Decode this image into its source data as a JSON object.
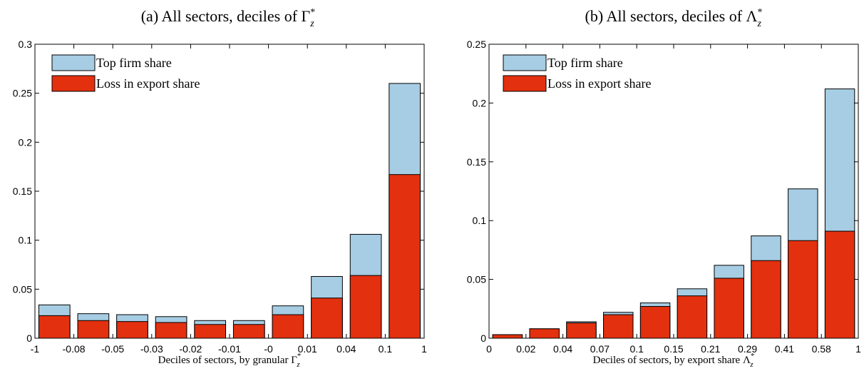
{
  "chart_data": [
    {
      "type": "bar",
      "title": "(a) All sectors, deciles of Γ",
      "title_sup": "*",
      "title_sub": "z",
      "xlabel": "Deciles of sectors, by granular Γ",
      "xlabel_sup": "*",
      "xlabel_sub": "z",
      "ylim": [
        0,
        0.3
      ],
      "yticks": [
        "0",
        "0.05",
        "0.1",
        "0.15",
        "0.2",
        "0.25",
        "0.3"
      ],
      "xticks": [
        "-1",
        "-0.08",
        "-0.05",
        "-0.03",
        "-0.02",
        "-0.01",
        "-0",
        "0.01",
        "0.04",
        "0.1",
        "1"
      ],
      "legend_position": "top-left",
      "series": [
        {
          "name": "Top firm share",
          "color": "#a6cde3",
          "values": [
            0.034,
            0.025,
            0.024,
            0.022,
            0.018,
            0.018,
            0.033,
            0.063,
            0.106,
            0.26
          ]
        },
        {
          "name": "Loss in export share",
          "color": "#e3300f",
          "values": [
            0.023,
            0.018,
            0.017,
            0.016,
            0.014,
            0.014,
            0.024,
            0.041,
            0.064,
            0.167
          ]
        }
      ]
    },
    {
      "type": "bar",
      "title": "(b) All sectors, deciles of Λ",
      "title_sup": "*",
      "title_sub": "z",
      "xlabel": "Deciles of sectors, by export share Λ",
      "xlabel_sup": "*",
      "xlabel_sub": "z",
      "ylim": [
        0,
        0.25
      ],
      "yticks": [
        "0",
        "0.05",
        "0.1",
        "0.15",
        "0.2",
        "0.25"
      ],
      "xticks": [
        "0",
        "0.02",
        "0.04",
        "0.07",
        "0.1",
        "0.15",
        "0.21",
        "0.29",
        "0.41",
        "0.58",
        "1"
      ],
      "legend_position": "top-left",
      "series": [
        {
          "name": "Top firm share",
          "color": "#a6cde3",
          "values": [
            0.003,
            0.008,
            0.014,
            0.022,
            0.03,
            0.042,
            0.062,
            0.087,
            0.127,
            0.212
          ]
        },
        {
          "name": "Loss in export share",
          "color": "#e3300f",
          "values": [
            0.003,
            0.008,
            0.013,
            0.02,
            0.027,
            0.036,
            0.051,
            0.066,
            0.083,
            0.091
          ]
        }
      ]
    }
  ]
}
